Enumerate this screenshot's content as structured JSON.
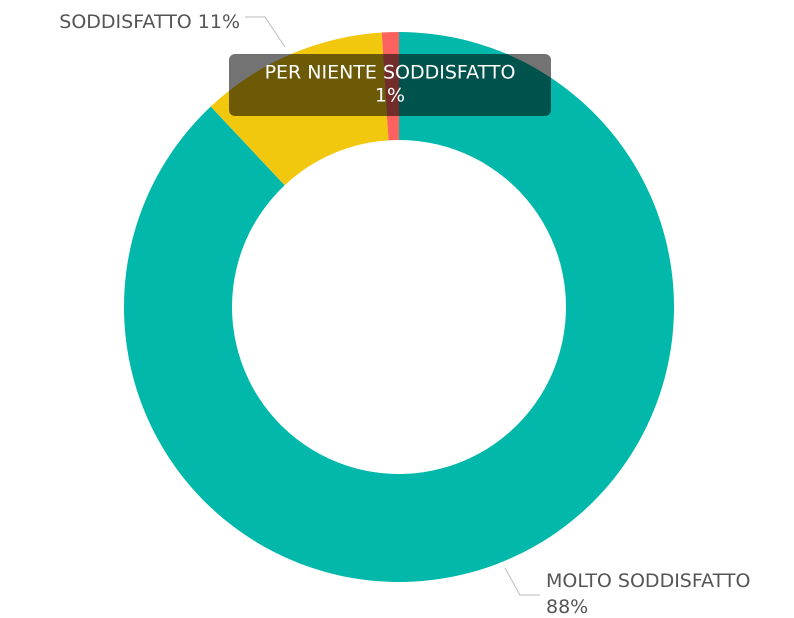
{
  "chart_data": {
    "type": "donut",
    "categories": [
      "MOLTO SODDISFATTO",
      "SODDISFATTO",
      "PER NIENTE SODDISFATTO"
    ],
    "values": [
      88,
      11,
      1
    ],
    "value_labels": [
      "88%",
      "11%",
      "1%"
    ],
    "colors": [
      "#01b8aa",
      "#f2c80f",
      "#fd625e"
    ]
  }
}
